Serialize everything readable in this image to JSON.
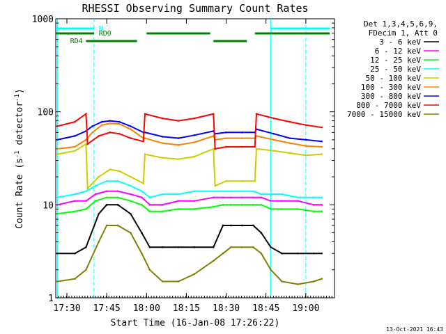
{
  "chart_data": {
    "type": "line",
    "title": "RHESSI Observing Summary Count Rates",
    "xlabel": "Start Time (16-Jan-08 17:26:22)",
    "ylabel_main": "Count Rate (s",
    "ylabel_sup1": "-1",
    "ylabel_mid": " detector",
    "ylabel_sup2": "-1",
    "ylabel_end": ")",
    "footer": "13-Oct-2021 16:43",
    "y_scale": "log",
    "ylim": [
      1,
      1000
    ],
    "xlim_minutes": [
      17.43,
      19.18
    ],
    "x_ticks": [
      {
        "label": "17:30",
        "t": 17.5
      },
      {
        "label": "17:45",
        "t": 17.75
      },
      {
        "label": "18:00",
        "t": 18.0
      },
      {
        "label": "18:15",
        "t": 18.25
      },
      {
        "label": "18:30",
        "t": 18.5
      },
      {
        "label": "18:45",
        "t": 18.75
      },
      {
        "label": "19:00",
        "t": 19.0
      }
    ],
    "y_ticks": [
      {
        "label": "1",
        "v": 1
      },
      {
        "label": "10",
        "v": 10
      },
      {
        "label": "100",
        "v": 100
      },
      {
        "label": "1000",
        "v": 1000
      }
    ],
    "legend_header": [
      "Det 1,3,4,5,6,9,",
      "FDecim 1, Att 0"
    ],
    "legend_placement": "right",
    "series": [
      {
        "name": "3 - 6 keV",
        "color": "#000000",
        "x": [
          17.44,
          17.55,
          17.62,
          17.7,
          17.75,
          17.82,
          17.9,
          17.97,
          18.02,
          18.1,
          18.2,
          18.3,
          18.42,
          18.48,
          18.53,
          18.6,
          18.67,
          18.72,
          18.78,
          18.85,
          18.95,
          19.05,
          19.1
        ],
        "y": [
          3,
          3,
          3.5,
          8,
          10,
          10,
          8,
          5,
          3.5,
          3.5,
          3.5,
          3.5,
          3.5,
          6,
          6,
          6,
          6,
          5,
          3.5,
          3,
          3,
          3,
          3
        ]
      },
      {
        "name": "6 - 12 keV",
        "color": "#ff00ff",
        "x": [
          17.44,
          17.55,
          17.62,
          17.68,
          17.75,
          17.82,
          17.9,
          17.97,
          18.02,
          18.1,
          18.2,
          18.3,
          18.42,
          18.48,
          18.53,
          18.6,
          18.67,
          18.72,
          18.78,
          18.85,
          18.95,
          19.05,
          19.1
        ],
        "y": [
          10,
          11,
          11,
          13,
          14,
          14,
          13,
          12,
          10,
          10,
          11,
          11,
          12,
          12,
          12,
          12,
          12,
          12,
          11,
          11,
          11,
          10,
          10
        ]
      },
      {
        "name": "12 - 25 keV",
        "color": "#00ff00",
        "x": [
          17.44,
          17.55,
          17.62,
          17.68,
          17.75,
          17.82,
          17.9,
          17.97,
          18.02,
          18.1,
          18.2,
          18.3,
          18.42,
          18.48,
          18.53,
          18.6,
          18.67,
          18.72,
          18.78,
          18.85,
          18.95,
          19.05,
          19.1
        ],
        "y": [
          8,
          8.5,
          9,
          11,
          12,
          12,
          11,
          10,
          8.5,
          8.5,
          9,
          9,
          9.5,
          10,
          10,
          10,
          10,
          10,
          9,
          9,
          9,
          8.5,
          8.5
        ]
      },
      {
        "name": "25 - 50 keV",
        "color": "#00ffff",
        "x": [
          17.44,
          17.55,
          17.62,
          17.68,
          17.75,
          17.82,
          17.9,
          17.97,
          18.02,
          18.1,
          18.2,
          18.3,
          18.42,
          18.48,
          18.53,
          18.6,
          18.67,
          18.72,
          18.78,
          18.85,
          18.95,
          19.05,
          19.1
        ],
        "y": [
          12,
          13,
          14,
          16,
          18,
          18,
          16,
          14,
          12,
          13,
          13,
          14,
          14,
          14,
          14,
          14,
          14,
          13,
          13,
          13,
          12,
          12,
          12
        ]
      },
      {
        "name": "50 - 100 keV",
        "color": "#cccc00",
        "x": [
          17.44,
          17.55,
          17.62,
          17.63,
          17.7,
          17.77,
          17.83,
          17.9,
          17.98,
          17.99,
          18.1,
          18.2,
          18.3,
          18.42,
          18.43,
          18.5,
          18.6,
          18.68,
          18.69,
          18.8,
          18.9,
          19.0,
          19.1
        ],
        "y": [
          35,
          38,
          45,
          15,
          20,
          24,
          23,
          20,
          17,
          35,
          32,
          31,
          33,
          40,
          16,
          18,
          18,
          18,
          40,
          38,
          36,
          34,
          35
        ]
      },
      {
        "name": "100 - 300 keV",
        "color": "#ff8000",
        "x": [
          17.44,
          17.55,
          17.62,
          17.66,
          17.72,
          17.77,
          17.83,
          17.9,
          17.98,
          17.99,
          18.1,
          18.2,
          18.3,
          18.42,
          18.43,
          18.5,
          18.6,
          18.68,
          18.69,
          18.8,
          18.9,
          19.0,
          19.1
        ],
        "y": [
          40,
          42,
          50,
          60,
          72,
          75,
          74,
          65,
          52,
          52,
          46,
          44,
          47,
          55,
          50,
          52,
          52,
          52,
          55,
          50,
          46,
          43,
          42
        ]
      },
      {
        "name": "300 - 800 keV",
        "color": "#0000ff",
        "x": [
          17.44,
          17.55,
          17.62,
          17.66,
          17.72,
          17.77,
          17.83,
          17.9,
          17.98,
          17.99,
          18.1,
          18.2,
          18.3,
          18.42,
          18.43,
          18.5,
          18.6,
          18.68,
          18.69,
          18.8,
          18.9,
          19.0,
          19.1
        ],
        "y": [
          50,
          55,
          62,
          70,
          78,
          80,
          78,
          70,
          60,
          60,
          54,
          52,
          56,
          62,
          58,
          60,
          60,
          60,
          65,
          58,
          52,
          50,
          48
        ]
      },
      {
        "name": "800 - 7000 keV",
        "color": "#ff0000",
        "x": [
          17.44,
          17.55,
          17.62,
          17.63,
          17.7,
          17.77,
          17.83,
          17.9,
          17.98,
          17.99,
          18.1,
          18.2,
          18.3,
          18.42,
          18.43,
          18.5,
          18.6,
          18.68,
          18.69,
          18.8,
          18.9,
          19.0,
          19.1
        ],
        "y": [
          70,
          78,
          95,
          45,
          55,
          60,
          58,
          52,
          48,
          95,
          85,
          80,
          85,
          95,
          40,
          42,
          42,
          42,
          95,
          85,
          78,
          72,
          68
        ]
      },
      {
        "name": "7000 - 15000 keV",
        "color": "#808000",
        "x": [
          17.44,
          17.55,
          17.62,
          17.7,
          17.75,
          17.82,
          17.9,
          17.97,
          18.02,
          18.1,
          18.2,
          18.3,
          18.42,
          18.48,
          18.53,
          18.6,
          18.67,
          18.72,
          18.78,
          18.85,
          18.95,
          19.05,
          19.1
        ],
        "y": [
          1.5,
          1.6,
          2,
          4,
          6,
          6,
          5,
          3,
          2,
          1.5,
          1.5,
          1.8,
          2.5,
          3,
          3.5,
          3.5,
          3.5,
          3,
          2,
          1.5,
          1.4,
          1.5,
          1.6
        ]
      }
    ],
    "attenuator_bars": [
      {
        "label": "RD0",
        "color": "#008000",
        "segments": [
          [
            17.43,
            17.67
          ],
          [
            18.0,
            18.4
          ],
          [
            18.68,
            19.15
          ]
        ]
      },
      {
        "label": "RD4",
        "color": "#008000",
        "segments": [
          [
            17.62,
            17.94
          ],
          [
            18.42,
            18.63
          ]
        ]
      },
      {
        "label": "N",
        "color": "#00ffff",
        "segments": [
          [
            17.43,
            17.67
          ],
          [
            18.78,
            19.15
          ]
        ]
      }
    ],
    "vertical_markers": [
      {
        "t": 17.44,
        "style": "solid",
        "color": "#00ffff"
      },
      {
        "t": 17.67,
        "style": "dashed",
        "color": "#00ffff"
      },
      {
        "t": 18.78,
        "style": "solid",
        "color": "#00ffff"
      },
      {
        "t": 19.0,
        "style": "dashed",
        "color": "#00ffff"
      }
    ]
  }
}
